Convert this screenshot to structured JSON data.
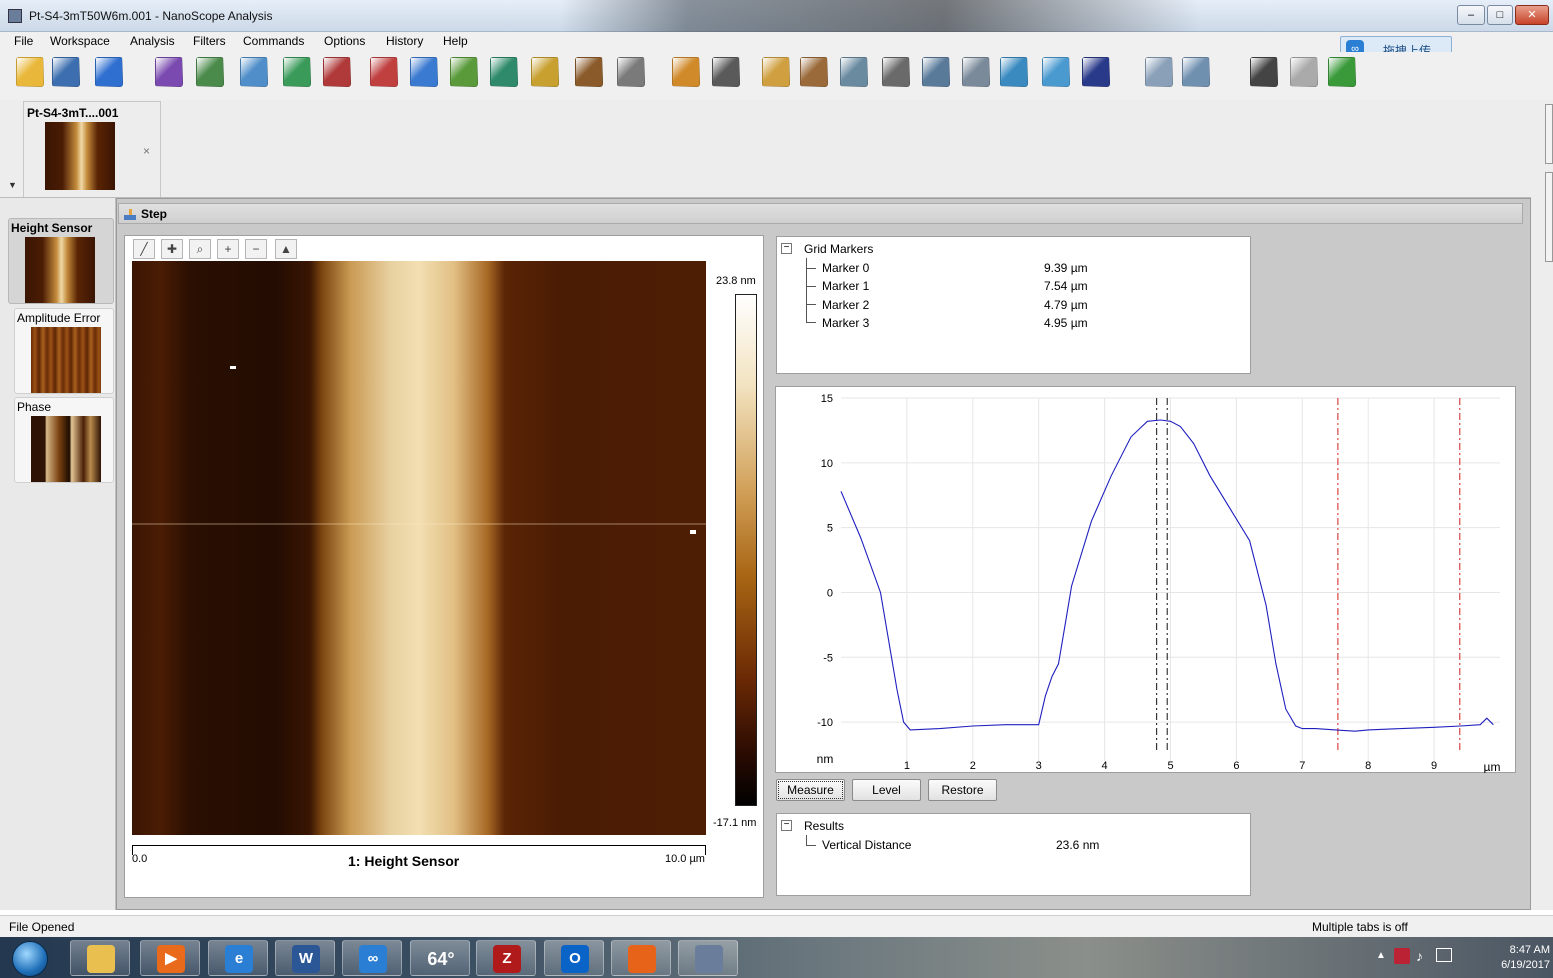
{
  "window": {
    "title": "Pt-S4-3mT50W6m.001 - NanoScope Analysis",
    "controls": [
      "minimize",
      "maximize",
      "close"
    ]
  },
  "menu": [
    "File",
    "Workspace",
    "Analysis",
    "Filters",
    "Commands",
    "Options",
    "History",
    "Help"
  ],
  "cloud_upload": {
    "label": "拖拽上传",
    "icon": "baidu-cloud-icon"
  },
  "toolbar_icons": [
    "open-icon",
    "save-icon",
    "help-icon",
    "image-view-icon",
    "3d-view-icon",
    "surface-icon",
    "section-icon",
    "zoom-icon",
    "spectrum-icon",
    "color-icon",
    "step-icon",
    "bearing-icon",
    "height-icon",
    "roughness-icon",
    "particle-icon",
    "depth-icon",
    "cut-icon",
    "crop-icon",
    "erase-icon",
    "plane-fit-icon",
    "filter-icon",
    "filter-matrix-icon",
    "flatten-icon",
    "lowpass-icon",
    "stack-icon",
    "3d-rotate-icon",
    "fft-icon",
    "layout-icon",
    "book-icon",
    "undo-icon",
    "redo-icon",
    "run-icon"
  ],
  "doc_tab": {
    "label": "Pt-S4-3mT....001",
    "close": "×"
  },
  "channels": [
    {
      "label": "Height Sensor",
      "selected": true
    },
    {
      "label": "Amplitude Error",
      "selected": false
    },
    {
      "label": "Phase",
      "selected": false
    }
  ],
  "analysis": {
    "title": "Step"
  },
  "image": {
    "caption": "1: Height Sensor",
    "colorbar_max": "23.8 nm",
    "colorbar_min": "-17.1 nm",
    "scale_start": "0.0",
    "scale_end": "10.0 µm",
    "tools": [
      "ruler-icon",
      "pan-icon",
      "zoom-icon",
      "zoom-in-icon",
      "zoom-out-icon",
      "3d-icon"
    ]
  },
  "grid_markers": {
    "title": "Grid Markers",
    "rows": [
      {
        "name": "Marker 0",
        "value": "9.39 µm"
      },
      {
        "name": "Marker 1",
        "value": "7.54 µm"
      },
      {
        "name": "Marker 2",
        "value": "4.79 µm"
      },
      {
        "name": "Marker 3",
        "value": "4.95 µm"
      }
    ]
  },
  "chart_data": {
    "type": "line",
    "xlabel": "µm",
    "ylabel": "nm",
    "xlim": [
      0,
      10
    ],
    "ylim": [
      -13,
      15
    ],
    "xticks": [
      1,
      2,
      3,
      4,
      5,
      6,
      7,
      8,
      9
    ],
    "yticks": [
      15,
      10,
      5,
      0,
      -5,
      -10
    ],
    "grid": true,
    "series": [
      {
        "color": "#1f1fbf",
        "x": [
          0.0,
          0.3,
          0.6,
          0.85,
          0.95,
          1.05,
          1.5,
          2.0,
          2.5,
          3.0,
          3.1,
          3.2,
          3.3,
          3.4,
          3.5,
          3.8,
          4.1,
          4.4,
          4.65,
          4.85,
          5.0,
          5.15,
          5.35,
          5.6,
          5.9,
          6.2,
          6.45,
          6.6,
          6.75,
          6.9,
          7.0,
          7.2,
          7.5,
          7.8,
          8.0,
          8.5,
          9.0,
          9.4,
          9.7,
          9.8,
          9.9
        ],
        "y": [
          7.8,
          4.2,
          0.0,
          -7.5,
          -10.0,
          -10.6,
          -10.5,
          -10.3,
          -10.2,
          -10.2,
          -8.0,
          -6.5,
          -5.5,
          -2.5,
          0.5,
          5.5,
          9.0,
          12.0,
          13.2,
          13.3,
          13.2,
          12.8,
          11.5,
          9.0,
          6.5,
          4.0,
          -1.0,
          -5.5,
          -9.0,
          -10.3,
          -10.5,
          -10.5,
          -10.6,
          -10.7,
          -10.6,
          -10.5,
          -10.4,
          -10.3,
          -10.2,
          -9.7,
          -10.2
        ]
      }
    ],
    "markers": [
      {
        "name": "Marker 0",
        "x": 9.39,
        "color": "#d42020",
        "style": "dashdot"
      },
      {
        "name": "Marker 1",
        "x": 7.54,
        "color": "#d42020",
        "style": "dashdot"
      },
      {
        "name": "Marker 2",
        "x": 4.79,
        "color": "#111111",
        "style": "dashdot"
      },
      {
        "name": "Marker 3",
        "x": 4.95,
        "color": "#111111",
        "style": "dashdot"
      }
    ]
  },
  "buttons": {
    "measure": "Measure",
    "level": "Level",
    "restore": "Restore"
  },
  "results": {
    "title": "Results",
    "rows": [
      {
        "name": "Vertical Distance",
        "value": "23.6 nm"
      }
    ]
  },
  "status": {
    "left": "File Opened",
    "right": "Multiple tabs is off"
  },
  "taskbar": {
    "items": [
      "explorer-icon",
      "media-player-icon",
      "internet-explorer-icon",
      "word-icon",
      "baidu-cloud-icon",
      "weather-icon",
      "filezilla-icon",
      "outlook-icon",
      "firefox-icon",
      "nanoscope-icon"
    ],
    "weather": "64°",
    "time": "8:47 AM",
    "date": "6/19/2017"
  }
}
